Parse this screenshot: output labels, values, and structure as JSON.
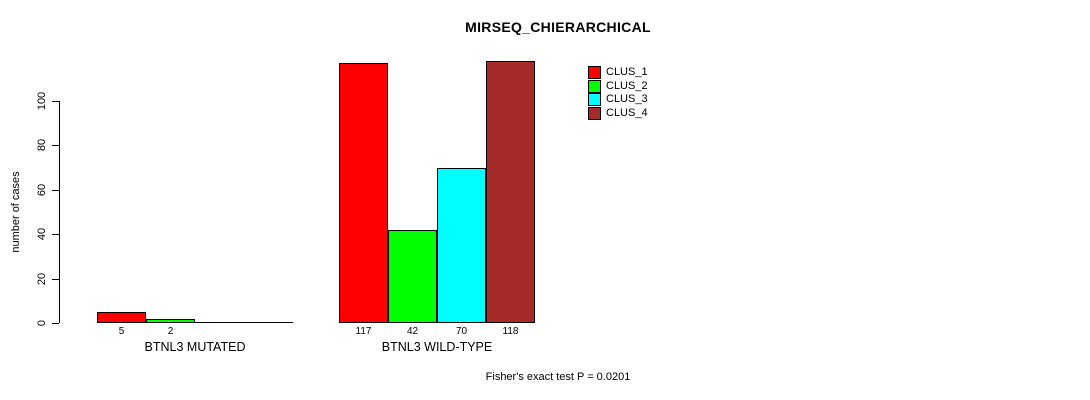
{
  "chart_data": {
    "type": "bar",
    "title": "MIRSEQ_CHIERARCHICAL",
    "ylabel": "number of cases",
    "xlabel": "",
    "categories": [
      "BTNL3 MUTATED",
      "BTNL3 WILD-TYPE"
    ],
    "series": [
      {
        "name": "CLUS_1",
        "color": "#ff0000",
        "values": [
          5,
          117
        ]
      },
      {
        "name": "CLUS_2",
        "color": "#00ff00",
        "values": [
          2,
          42
        ]
      },
      {
        "name": "CLUS_3",
        "color": "#00ffff",
        "values": [
          0,
          70
        ]
      },
      {
        "name": "CLUS_4",
        "color": "#a52a2a",
        "values": [
          0,
          118
        ]
      }
    ],
    "yticks": [
      0,
      20,
      40,
      60,
      80,
      100
    ],
    "ylim": [
      0,
      118
    ],
    "grid": false,
    "legend_position": "top-right",
    "value_labels_note": "values shown under bars; zero-height bars drawn as baseline with no label",
    "annotation": "Fisher's exact test P = 0.0201"
  }
}
